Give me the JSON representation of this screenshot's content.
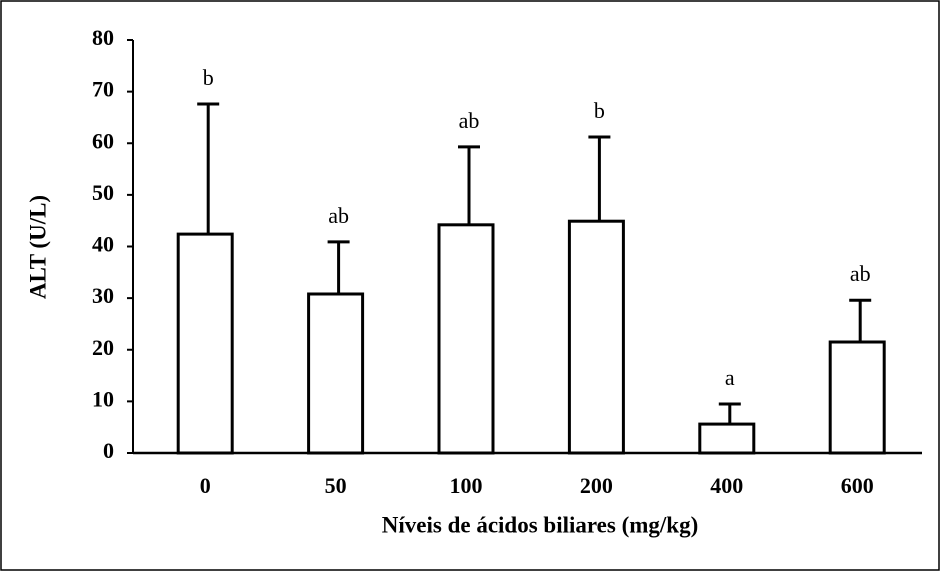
{
  "chart_data": {
    "type": "bar",
    "x_label": "Níveis de ácidos biliares (mg/kg)",
    "y_label": "ALT (U/L)",
    "categories": [
      "0",
      "50",
      "100",
      "200",
      "400",
      "600"
    ],
    "values": [
      42.4,
      30.8,
      44.2,
      44.9,
      5.6,
      21.5
    ],
    "errors": [
      25.2,
      10.1,
      15.1,
      16.3,
      3.9,
      8.1
    ],
    "annotations": [
      "b",
      "ab",
      "ab",
      "b",
      "a",
      "ab"
    ],
    "color": "#ffffff",
    "ylim": [
      0,
      80
    ],
    "yticks": [
      0,
      10,
      20,
      30,
      40,
      50,
      60,
      70,
      80
    ],
    "grid": false
  }
}
